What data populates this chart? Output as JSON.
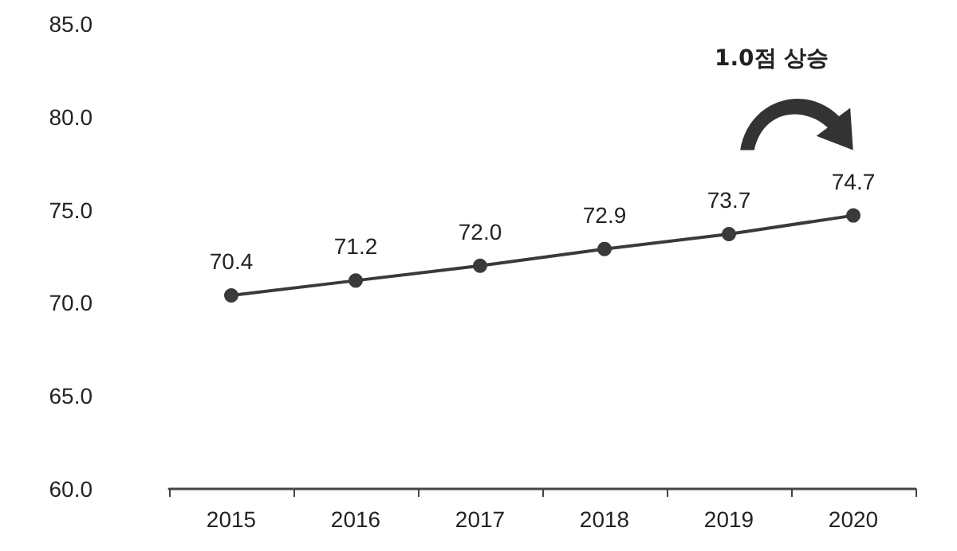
{
  "chart_data": {
    "type": "line",
    "categories": [
      "2015",
      "2016",
      "2017",
      "2018",
      "2019",
      "2020"
    ],
    "series": [
      {
        "color": "#3a3a3a",
        "values": [
          70.4,
          71.2,
          72.0,
          72.9,
          73.7,
          74.7
        ],
        "value_labels": [
          "70.4",
          "71.2",
          "72.0",
          "72.9",
          "73.7",
          "74.7"
        ]
      }
    ],
    "ylim": [
      60,
      85
    ],
    "yticks": [
      {
        "value": 60,
        "label": "60.0"
      },
      {
        "value": 65,
        "label": "65.0"
      },
      {
        "value": 70,
        "label": "70.0"
      },
      {
        "value": 75,
        "label": "75.0"
      },
      {
        "value": 80,
        "label": "80.0"
      },
      {
        "value": 85,
        "label": "85.0"
      }
    ],
    "annotations": [
      "1.0점 상승"
    ],
    "grid": false,
    "marker": "circle",
    "line_style": "solid"
  }
}
